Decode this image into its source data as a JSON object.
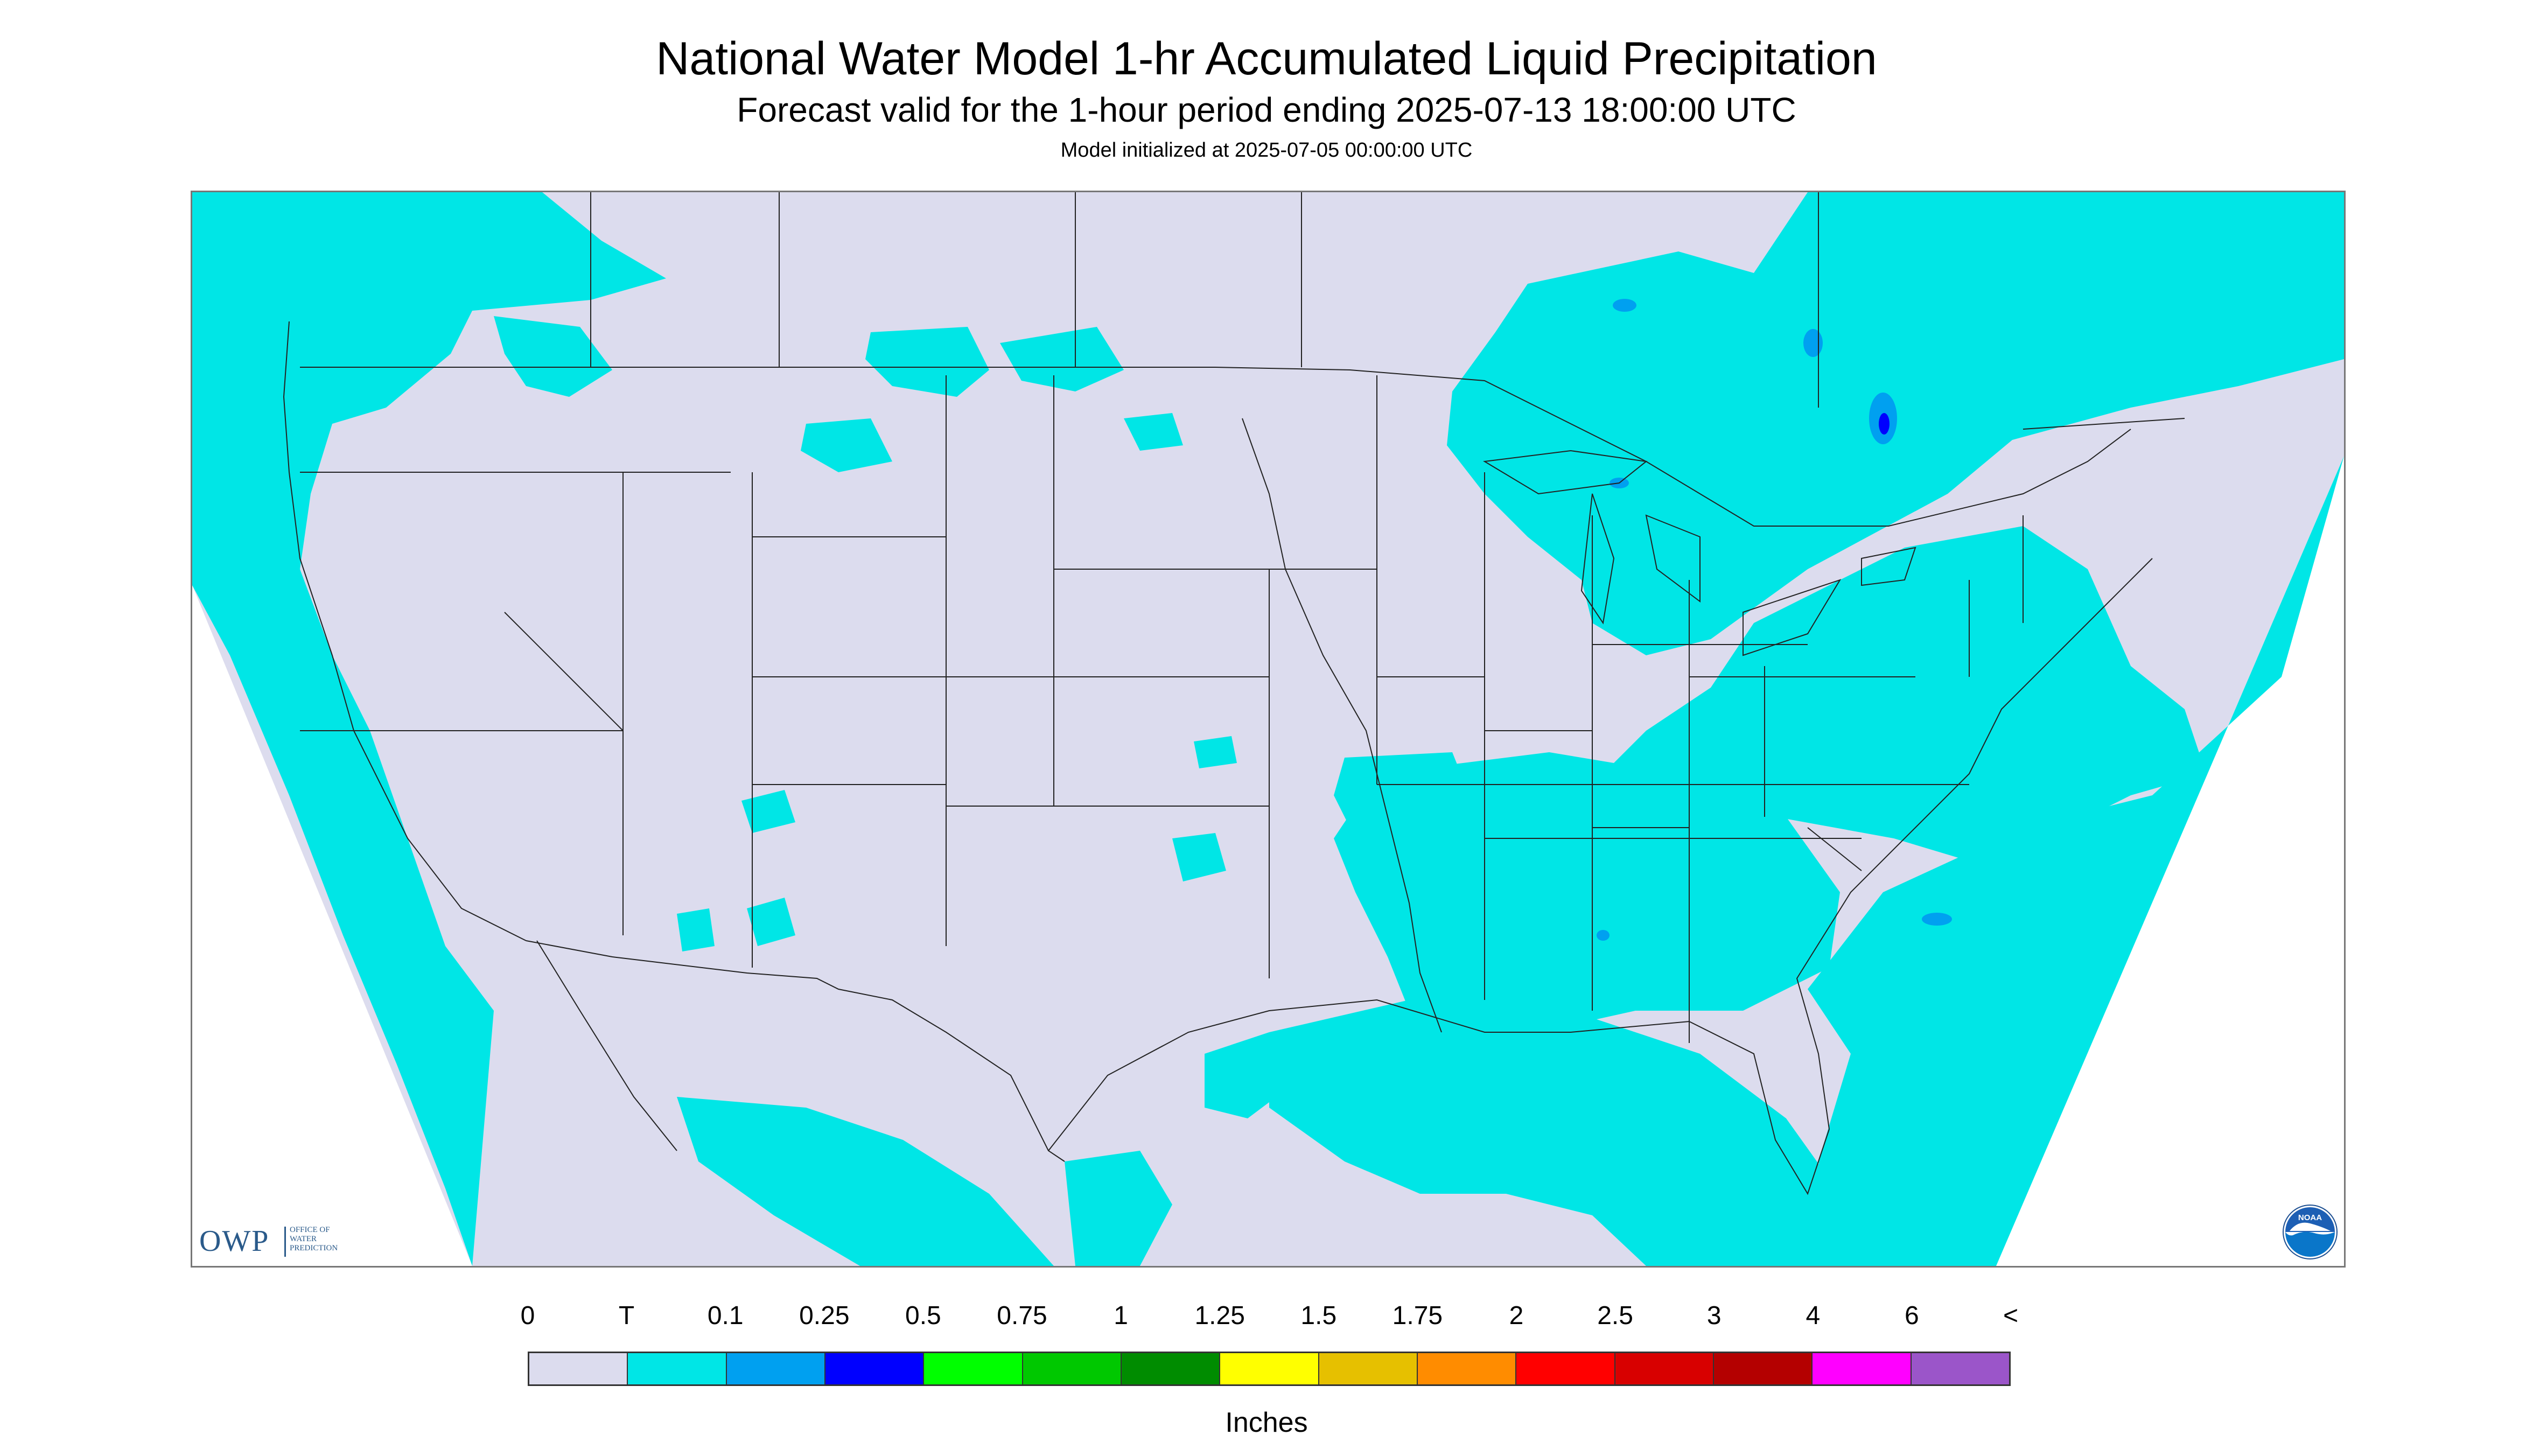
{
  "header": {
    "title": "National Water Model 1-hr Accumulated Liquid Precipitation",
    "subtitle": "Forecast valid for the 1-hour period ending 2025-07-13 18:00:00 UTC",
    "init": "Model initialized at 2025-07-05 00:00:00 UTC"
  },
  "map": {
    "background_color": "#dcdcee",
    "outside_color": "#ffffff",
    "trace_color": "#00e6e6",
    "light_blue_color": "#00a0f0",
    "blue_color": "#0000ff",
    "boundary_color": "#222222",
    "highest_category_shown": "0.5"
  },
  "logos": {
    "owp_mark": "OWP",
    "owp_text": "OFFICE OF\nWATER\nPREDICTION",
    "noaa_icon": "noaa-logo-icon",
    "noaa_text": "NOAA"
  },
  "legend": {
    "labels": [
      "0",
      "T",
      "0.1",
      "0.25",
      "0.5",
      "0.75",
      "1",
      "1.25",
      "1.5",
      "1.75",
      "2",
      "2.5",
      "3",
      "4",
      "6",
      "<"
    ],
    "colors": [
      "#dcdcee",
      "#00e6e6",
      "#00a0f0",
      "#0000ff",
      "#00ff00",
      "#00c800",
      "#008c00",
      "#ffff00",
      "#e6c000",
      "#ff8c00",
      "#ff0000",
      "#d80000",
      "#b40000",
      "#ff00ff",
      "#9b55c9"
    ],
    "units": "Inches"
  }
}
